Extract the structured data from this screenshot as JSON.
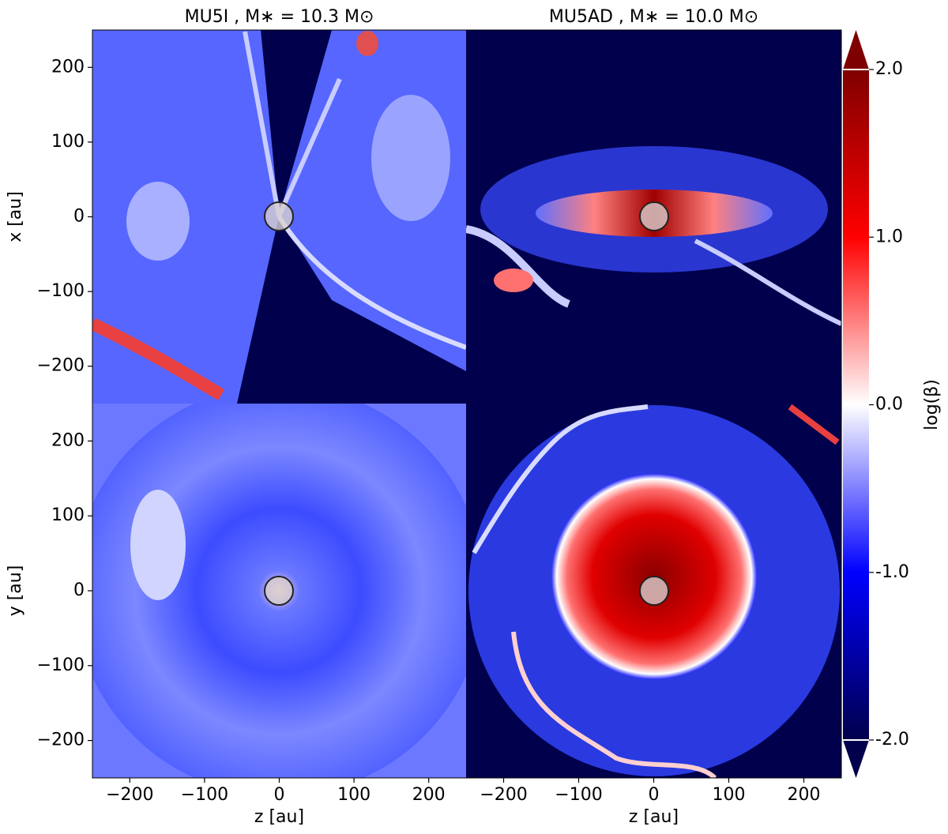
{
  "chart_data": [
    {
      "type": "image",
      "title": "MU5I , M∗ = 10.3 M⊙",
      "ylabel": "x [au]",
      "xlim": [
        -250,
        250
      ],
      "ylim": [
        -250,
        250
      ],
      "yticks": [
        {
          "value": -200,
          "label": "−200"
        },
        {
          "value": -100,
          "label": "−100"
        },
        0,
        100,
        200
      ]
    },
    {
      "type": "image",
      "title": "MU5AD , M∗ = 10.0 M⊙",
      "xlim": [
        -250,
        250
      ],
      "ylim": [
        -250,
        250
      ]
    },
    {
      "type": "image",
      "ylabel": "y [au]",
      "xlabel": "z [au]",
      "xlim": [
        -250,
        250
      ],
      "ylim": [
        -250,
        250
      ],
      "xticks": [
        {
          "value": -200,
          "label": "−200"
        },
        {
          "value": -100,
          "label": "−100"
        },
        0,
        100,
        200
      ],
      "yticks": [
        {
          "value": -200,
          "label": "−200"
        },
        {
          "value": -100,
          "label": "−100"
        },
        0,
        100,
        200
      ]
    },
    {
      "type": "image",
      "xlabel": "z [au]",
      "xlim": [
        -250,
        250
      ],
      "ylim": [
        -250,
        250
      ],
      "xticks": [
        {
          "value": -200,
          "label": "−200"
        },
        {
          "value": -100,
          "label": "−100"
        },
        0,
        100,
        200
      ]
    }
  ],
  "colorbar": {
    "label": "log(β)",
    "lim": [
      -2,
      2
    ],
    "ticks": [
      {
        "value": 2,
        "label": "2.0"
      },
      {
        "value": 1,
        "label": "1.0"
      },
      {
        "value": 0,
        "label": "0.0"
      },
      {
        "value": -1,
        "label": "-1.0"
      },
      {
        "value": -2,
        "label": "-2.0"
      }
    ]
  }
}
